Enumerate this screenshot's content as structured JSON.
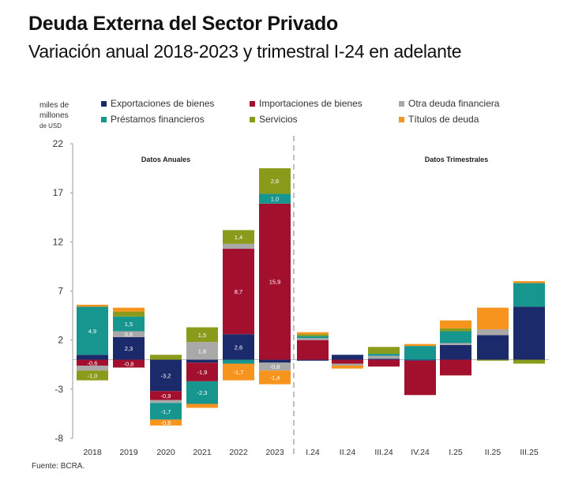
{
  "header": {
    "title": "Deuda Externa del Sector Privado",
    "subtitle": "Variación anual 2018-2023 y trimestral I-24 en adelante"
  },
  "unit_label": [
    "miles de",
    "millones",
    "de USD"
  ],
  "source": "Fuente: BCRA.",
  "colors": {
    "exportaciones": "#1b2a6b",
    "importaciones": "#a3102e",
    "otra": "#a9a9a9",
    "prestamos": "#17958f",
    "servicios": "#8a9a1a",
    "titulos": "#f7941d"
  },
  "chart_data": {
    "type": "bar",
    "stacked": true,
    "title": "Deuda Externa del Sector Privado",
    "subtitle": "Variación anual 2018-2023 y trimestral I-24 en adelante",
    "ylabel": "miles de millones de USD",
    "xlabel": "",
    "ylim": [
      -8,
      22
    ],
    "yticks": [
      -8,
      -3,
      2,
      7,
      12,
      17,
      22
    ],
    "grid": false,
    "legend_position": "top",
    "section_labels": [
      {
        "label": "Datos Anuales",
        "categories": [
          "2018",
          "2019",
          "2020",
          "2021",
          "2022",
          "2023"
        ]
      },
      {
        "label": "Datos Trimestrales",
        "categories": [
          "I.24",
          "II.24",
          "III.24",
          "IV.24",
          "I.25",
          "II.25",
          "III.25"
        ]
      }
    ],
    "categories": [
      "2018",
      "2019",
      "2020",
      "2021",
      "2022",
      "2023",
      "I.24",
      "II.24",
      "III.24",
      "IV.24",
      "I.25",
      "II.25",
      "III.25"
    ],
    "series": [
      {
        "key": "exportaciones",
        "name": "Exportaciones de bienes",
        "values": [
          0.5,
          2.3,
          -3.2,
          -0.3,
          2.6,
          -0.3,
          -0.1,
          0.5,
          0.1,
          -0.1,
          1.5,
          2.5,
          5.4
        ]
      },
      {
        "key": "importaciones",
        "name": "Importaciones de bienes",
        "values": [
          -0.6,
          -0.8,
          -0.9,
          -1.9,
          8.7,
          15.9,
          2.0,
          -0.4,
          -0.7,
          -3.5,
          -1.6,
          0.0,
          0.0
        ]
      },
      {
        "key": "otra",
        "name": "Otra deuda financiera",
        "values": [
          -0.5,
          0.6,
          -0.3,
          1.8,
          0.5,
          -0.8,
          0.2,
          -0.2,
          0.3,
          0.0,
          0.2,
          0.6,
          0.0
        ]
      },
      {
        "key": "prestamos",
        "name": "Préstamos financieros",
        "values": [
          4.9,
          1.5,
          -1.7,
          -2.3,
          -0.4,
          1.0,
          0.2,
          0.0,
          0.2,
          1.4,
          1.2,
          0.0,
          2.4
        ]
      },
      {
        "key": "servicios",
        "name": "Servicios",
        "values": [
          -1.0,
          0.5,
          0.5,
          1.5,
          1.4,
          2.6,
          0.2,
          0.0,
          0.7,
          0.0,
          0.3,
          -0.1,
          -0.4
        ]
      },
      {
        "key": "titulos",
        "name": "Títulos de deuda",
        "values": [
          0.2,
          0.4,
          -0.6,
          -0.4,
          -1.7,
          -1.4,
          0.2,
          -0.3,
          0.0,
          0.2,
          0.8,
          2.2,
          0.2
        ]
      }
    ],
    "data_labels": {
      "2018": {
        "exportaciones": "0,5",
        "importaciones": "-0,6",
        "otra": "-0,5",
        "prestamos": "4,9",
        "servicios": "-1,0",
        "titulos": "0,2"
      },
      "2019": {
        "exportaciones": "2,3",
        "importaciones": "-0,8",
        "otra": "0,6",
        "prestamos": "1,5",
        "servicios": "0,5",
        "titulos": "0,4"
      },
      "2020": {
        "exportaciones": "-3,2",
        "importaciones": "-0,9",
        "otra": "-0,3",
        "prestamos": "-1,7",
        "servicios": "0,5",
        "titulos": "-0,6"
      },
      "2021": {
        "exportaciones": "-0,3",
        "importaciones": "-1,9",
        "otra": "1,8",
        "prestamos": "-2,3",
        "servicios": "1,5",
        "titulos": "-0,4"
      },
      "2022": {
        "exportaciones": "2,6",
        "importaciones": "8,7",
        "otra": "0,5",
        "prestamos": "-0,4",
        "servicios": "1,4",
        "titulos": "-1,7"
      },
      "2023": {
        "exportaciones": "-0,3",
        "importaciones": "15,9",
        "otra": "-0,8",
        "prestamos": "1,0",
        "servicios": "2,6",
        "titulos": "-1,4"
      }
    }
  }
}
